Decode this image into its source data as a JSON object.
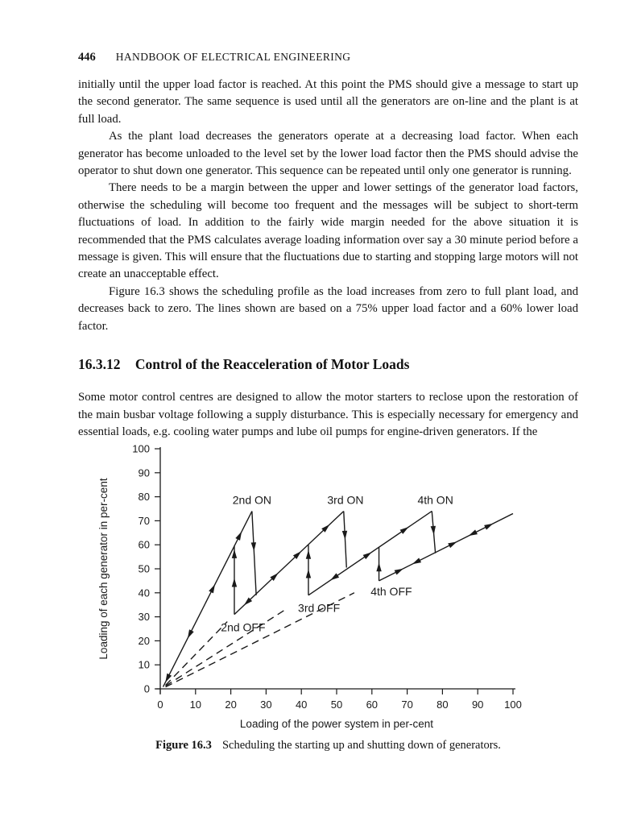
{
  "header": {
    "page_number": "446",
    "running_title": "HANDBOOK OF ELECTRICAL ENGINEERING"
  },
  "paragraphs": [
    "initially until the upper load factor is reached. At this point the PMS should give a message to start up the second generator. The same sequence is used until all the generators are on-line and the plant is at full load.",
    "As the plant load decreases the generators operate at a decreasing load factor. When each generator has become unloaded to the level set by the lower load factor then the PMS should advise the operator to shut down one generator. This sequence can be repeated until only one generator is running.",
    "There needs to be a margin between the upper and lower settings of the generator load factors, otherwise the scheduling will become too frequent and the messages will be subject to short-term fluctuations of load. In addition to the fairly wide margin needed for the above situation it is recommended that the PMS calculates average loading information over say a 30 minute period before a message is given. This will ensure that the fluctuations due to starting and stopping large motors will not create an unacceptable effect.",
    "Figure 16.3 shows the scheduling profile as the load increases from zero to full plant load, and decreases back to zero. The lines shown are based on a 75% upper load factor and a 60% lower load factor."
  ],
  "section": {
    "number": "16.3.12",
    "title": "Control of the Reacceleration of Motor Loads"
  },
  "paragraph_after_heading": "Some motor control centres are designed to allow the motor starters to reclose upon the restoration of the main busbar voltage following a supply disturbance. This is especially necessary for emergency and essential loads, e.g. cooling water pumps and lube oil pumps for engine-driven generators. If the",
  "figure": {
    "label": "Figure 16.3",
    "caption": "Scheduling the starting up and shutting down of generators."
  },
  "chart_data": {
    "type": "line",
    "title": "",
    "xlabel": "Loading of the power system in per-cent",
    "ylabel": "Loading of each generator in per-cent",
    "xlim": [
      0,
      100
    ],
    "ylim": [
      0,
      100
    ],
    "xticks": [
      0,
      10,
      20,
      30,
      40,
      50,
      60,
      70,
      80,
      90,
      100
    ],
    "yticks": [
      0,
      10,
      20,
      30,
      40,
      50,
      60,
      70,
      80,
      90,
      100
    ],
    "grid": false,
    "legend": "none",
    "line_color": "#1a1a1a",
    "description": "Hysteresis scheduling profile: generators switched on at 75% upper load factor (ON drops at ~25/50/75% system load) and off at 60% lower load factor (OFF jumps at ~20/40/60%); dashed lines are extensions of each loading line back to the origin; arrows show direction of travel.",
    "segments": [
      {
        "name": "one-generator-line",
        "style": "solid",
        "points": [
          [
            0.8,
            0.8
          ],
          [
            26,
            74
          ]
        ],
        "arrows": [
          {
            "t": 0.05,
            "dir": -1
          },
          {
            "t": 0.3,
            "dir": -1
          },
          {
            "t": 0.56,
            "dir": 1
          },
          {
            "t": 0.86,
            "dir": 1
          }
        ]
      },
      {
        "name": "second-on-drop",
        "style": "solid",
        "points": [
          [
            26,
            74
          ],
          [
            27.2,
            39
          ]
        ],
        "arrows": [
          {
            "t": 0.42,
            "dir": 1
          }
        ]
      },
      {
        "name": "two-generator-line",
        "style": "solid",
        "points": [
          [
            21,
            31
          ],
          [
            52,
            74
          ]
        ],
        "arrows": [
          {
            "t": 0.12,
            "dir": -1
          },
          {
            "t": 0.37,
            "dir": 1
          },
          {
            "t": 0.58,
            "dir": 1
          },
          {
            "t": 0.84,
            "dir": 1
          }
        ]
      },
      {
        "name": "second-off-jump",
        "style": "solid",
        "points": [
          [
            21,
            31
          ],
          [
            21,
            59.5
          ]
        ],
        "arrows": [
          {
            "t": 0.46,
            "dir": 1
          },
          {
            "t": 0.88,
            "dir": 1
          }
        ]
      },
      {
        "name": "two-generator-dashed-extension",
        "style": "dashed",
        "points": [
          [
            1.5,
            1.5
          ],
          [
            19,
            28
          ]
        ],
        "arrows": []
      },
      {
        "name": "third-on-drop",
        "style": "solid",
        "points": [
          [
            52,
            74
          ],
          [
            52.8,
            50.5
          ]
        ],
        "arrows": [
          {
            "t": 0.42,
            "dir": 1
          }
        ]
      },
      {
        "name": "three-generator-line",
        "style": "solid",
        "points": [
          [
            42,
            39
          ],
          [
            77,
            74
          ]
        ],
        "arrows": [
          {
            "t": 0.21,
            "dir": -1
          },
          {
            "t": 0.48,
            "dir": 1
          },
          {
            "t": 0.78,
            "dir": 1
          }
        ]
      },
      {
        "name": "third-off-jump",
        "style": "solid",
        "points": [
          [
            42,
            39
          ],
          [
            42,
            60
          ]
        ],
        "arrows": [
          {
            "t": 0.42,
            "dir": 1
          },
          {
            "t": 0.8,
            "dir": 1
          }
        ]
      },
      {
        "name": "three-generator-dashed-extension",
        "style": "dashed",
        "points": [
          [
            1.5,
            1.2
          ],
          [
            36,
            33.5
          ]
        ],
        "arrows": []
      },
      {
        "name": "fourth-on-drop",
        "style": "solid",
        "points": [
          [
            77,
            74
          ],
          [
            78,
            56.5
          ]
        ],
        "arrows": [
          {
            "t": 0.45,
            "dir": 1
          }
        ]
      },
      {
        "name": "four-generator-line",
        "style": "solid",
        "points": [
          [
            62,
            45
          ],
          [
            100,
            73
          ]
        ],
        "arrows": [
          {
            "t": 0.15,
            "dir": 1
          },
          {
            "t": 0.28,
            "dir": -1
          },
          {
            "t": 0.55,
            "dir": 1
          },
          {
            "t": 0.7,
            "dir": -1
          },
          {
            "t": 0.82,
            "dir": 1
          }
        ]
      },
      {
        "name": "fourth-off-jump",
        "style": "solid",
        "points": [
          [
            62,
            45
          ],
          [
            62,
            59
          ]
        ],
        "arrows": [
          {
            "t": 0.4,
            "dir": 1
          }
        ]
      },
      {
        "name": "four-generator-dashed-extension",
        "style": "dashed",
        "points": [
          [
            1.5,
            0.8
          ],
          [
            55,
            40
          ]
        ],
        "arrows": []
      }
    ],
    "annotations": [
      {
        "text": "2nd ON",
        "x": 26,
        "y": 78.5
      },
      {
        "text": "3rd ON",
        "x": 52.5,
        "y": 78.5
      },
      {
        "text": "4th ON",
        "x": 78,
        "y": 78.5
      },
      {
        "text": "2nd OFF",
        "x": 23.5,
        "y": 25.5
      },
      {
        "text": "3rd OFF",
        "x": 45,
        "y": 33.5
      },
      {
        "text": "4th OFF",
        "x": 65.5,
        "y": 40.5
      }
    ]
  }
}
